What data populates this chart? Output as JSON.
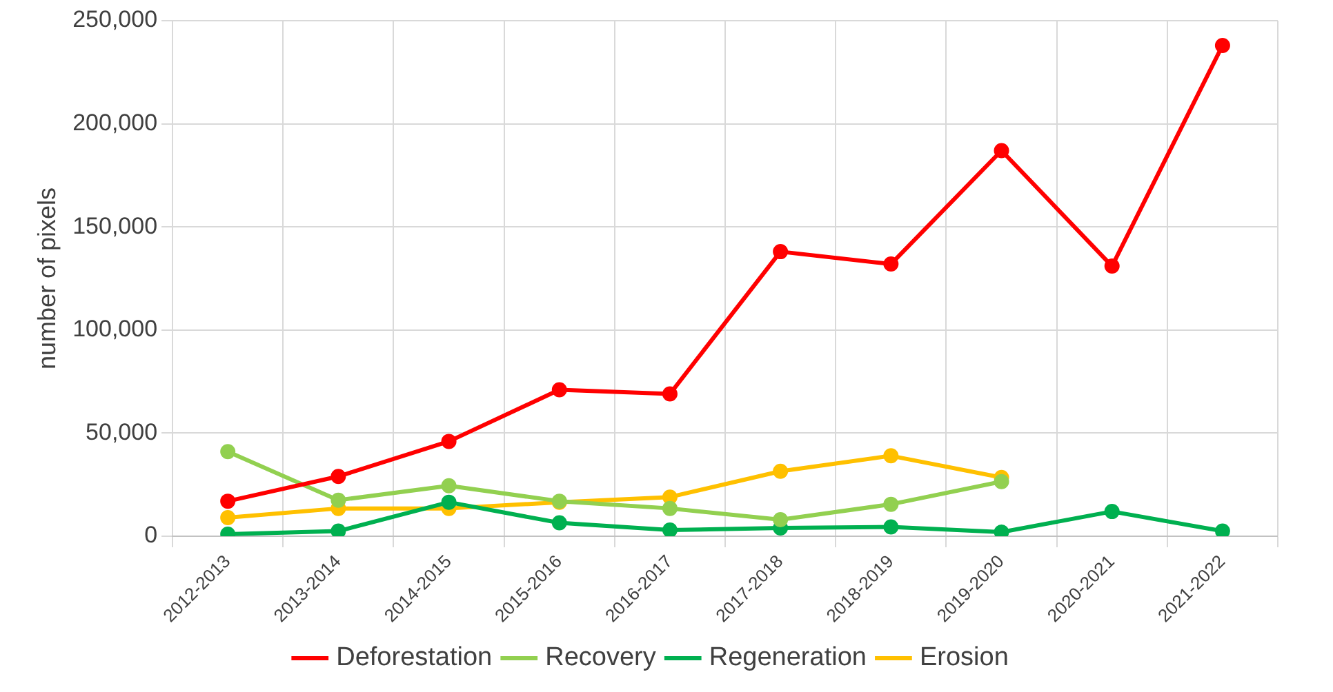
{
  "chart_data": {
    "type": "line",
    "ylabel": "number of pixels",
    "categories": [
      "2012-2013",
      "2013-2014",
      "2014-2015",
      "2015-2016",
      "2016-2017",
      "2017-2018",
      "2018-2019",
      "2019-2020",
      "2020-2021",
      "2021-2022"
    ],
    "series": [
      {
        "name": "Deforestation",
        "color": "#ff0000",
        "values": [
          17000,
          29000,
          46000,
          71000,
          69000,
          138000,
          132000,
          187000,
          131000,
          238000
        ]
      },
      {
        "name": "Recovery",
        "color": "#92d050",
        "values": [
          41000,
          17500,
          24500,
          17000,
          13500,
          8000,
          15500,
          26500,
          null,
          null
        ]
      },
      {
        "name": "Regeneration",
        "color": "#00b050",
        "values": [
          1000,
          2500,
          16500,
          6500,
          3000,
          4000,
          4500,
          2000,
          12000,
          2500
        ]
      },
      {
        "name": "Erosion",
        "color": "#ffc000",
        "values": [
          9000,
          13500,
          13500,
          16500,
          19000,
          31500,
          39000,
          28500,
          null,
          null
        ]
      }
    ],
    "ylim": [
      0,
      250000
    ],
    "yticks": [
      0,
      {
        "value": 50000,
        "label": "50,000"
      },
      {
        "value": 100000,
        "label": "100,000"
      },
      {
        "value": 150000,
        "label": "150,000"
      },
      {
        "value": 200000,
        "label": "200,000"
      },
      {
        "value": 250000,
        "label": "250,000"
      }
    ],
    "grid": true,
    "legend": "bottom",
    "marker": "circle",
    "line_style": "solid"
  }
}
